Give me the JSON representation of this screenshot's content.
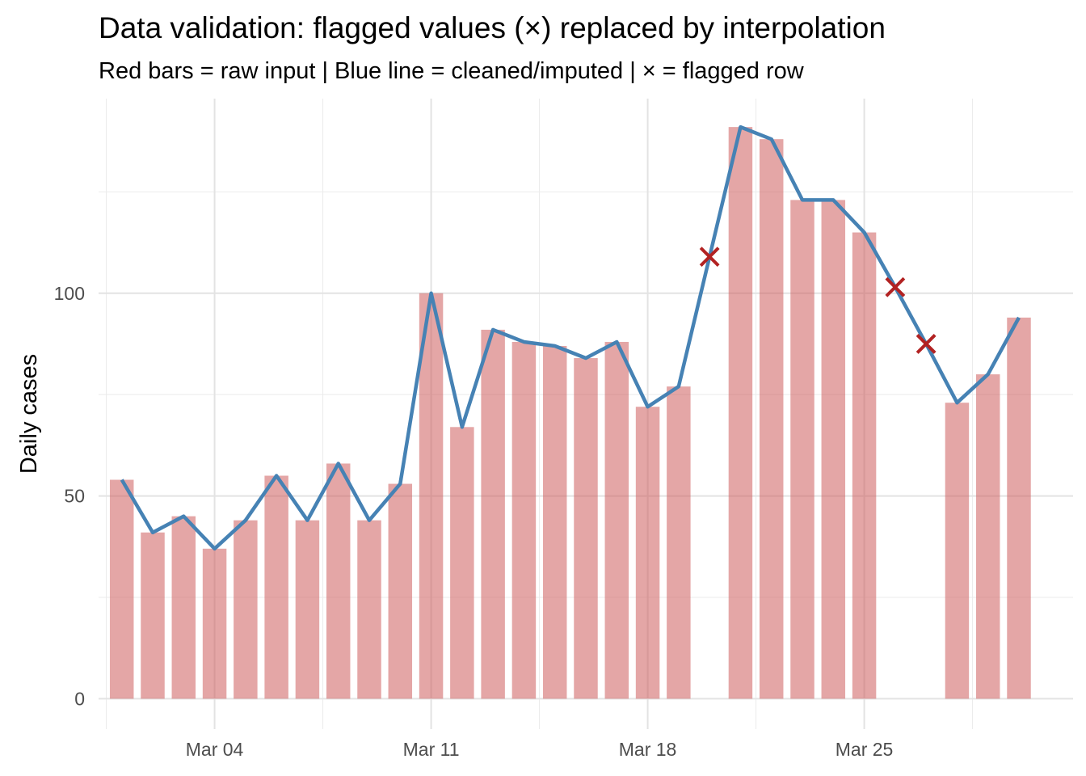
{
  "title": "Data validation: flagged values (×) replaced by interpolation",
  "subtitle": "Red bars = raw input  |  Blue line = cleaned/imputed  |  × = flagged row",
  "chart_data": {
    "type": "bar",
    "title": "Data validation: flagged values (×) replaced by interpolation",
    "subtitle": "Red bars = raw input  |  Blue line = cleaned/imputed  |  × = flagged row",
    "xlabel": "",
    "ylabel": "Daily cases",
    "x_range": [
      0.25,
      31.75
    ],
    "ylim": [
      -7.5,
      148
    ],
    "y_ticks": [
      0,
      50,
      100
    ],
    "y_minor_ticks": [
      25,
      75,
      125
    ],
    "x_ticks": [
      {
        "day": 4,
        "label": "Mar 04"
      },
      {
        "day": 11,
        "label": "Mar 11"
      },
      {
        "day": 18,
        "label": "Mar 18"
      },
      {
        "day": 25,
        "label": "Mar 25"
      }
    ],
    "x_minor_ticks": [
      0.5,
      7.5,
      14.5,
      21.5,
      28.5
    ],
    "grid": true,
    "legend": "none",
    "days": [
      1,
      2,
      3,
      4,
      5,
      6,
      7,
      8,
      9,
      10,
      11,
      12,
      13,
      14,
      15,
      16,
      17,
      18,
      19,
      20,
      21,
      22,
      23,
      24,
      25,
      26,
      27,
      28,
      29,
      30
    ],
    "series": [
      {
        "name": "raw input",
        "type": "bar",
        "color": "#cd5c5c",
        "opacity": 0.55,
        "values": [
          54,
          41,
          45,
          37,
          44,
          55,
          44,
          58,
          44,
          53,
          100,
          67,
          91,
          88,
          87,
          84,
          88,
          72,
          77,
          null,
          141,
          138,
          123,
          123,
          115,
          null,
          null,
          73,
          80,
          94
        ]
      },
      {
        "name": "cleaned/imputed",
        "type": "line",
        "color": "#4682b4",
        "values": [
          54,
          41,
          45,
          37,
          44,
          55,
          44,
          58,
          44,
          53,
          100,
          67,
          91,
          88,
          87,
          84,
          88,
          72,
          77,
          109,
          141,
          138,
          123,
          123,
          115,
          101.5,
          87.5,
          73,
          80,
          94
        ]
      },
      {
        "name": "flagged row",
        "type": "scatter",
        "marker": "x",
        "color": "#b22222",
        "points": [
          {
            "day": 20,
            "value": 109
          },
          {
            "day": 26,
            "value": 101.5
          },
          {
            "day": 27,
            "value": 87.5
          }
        ]
      }
    ]
  }
}
